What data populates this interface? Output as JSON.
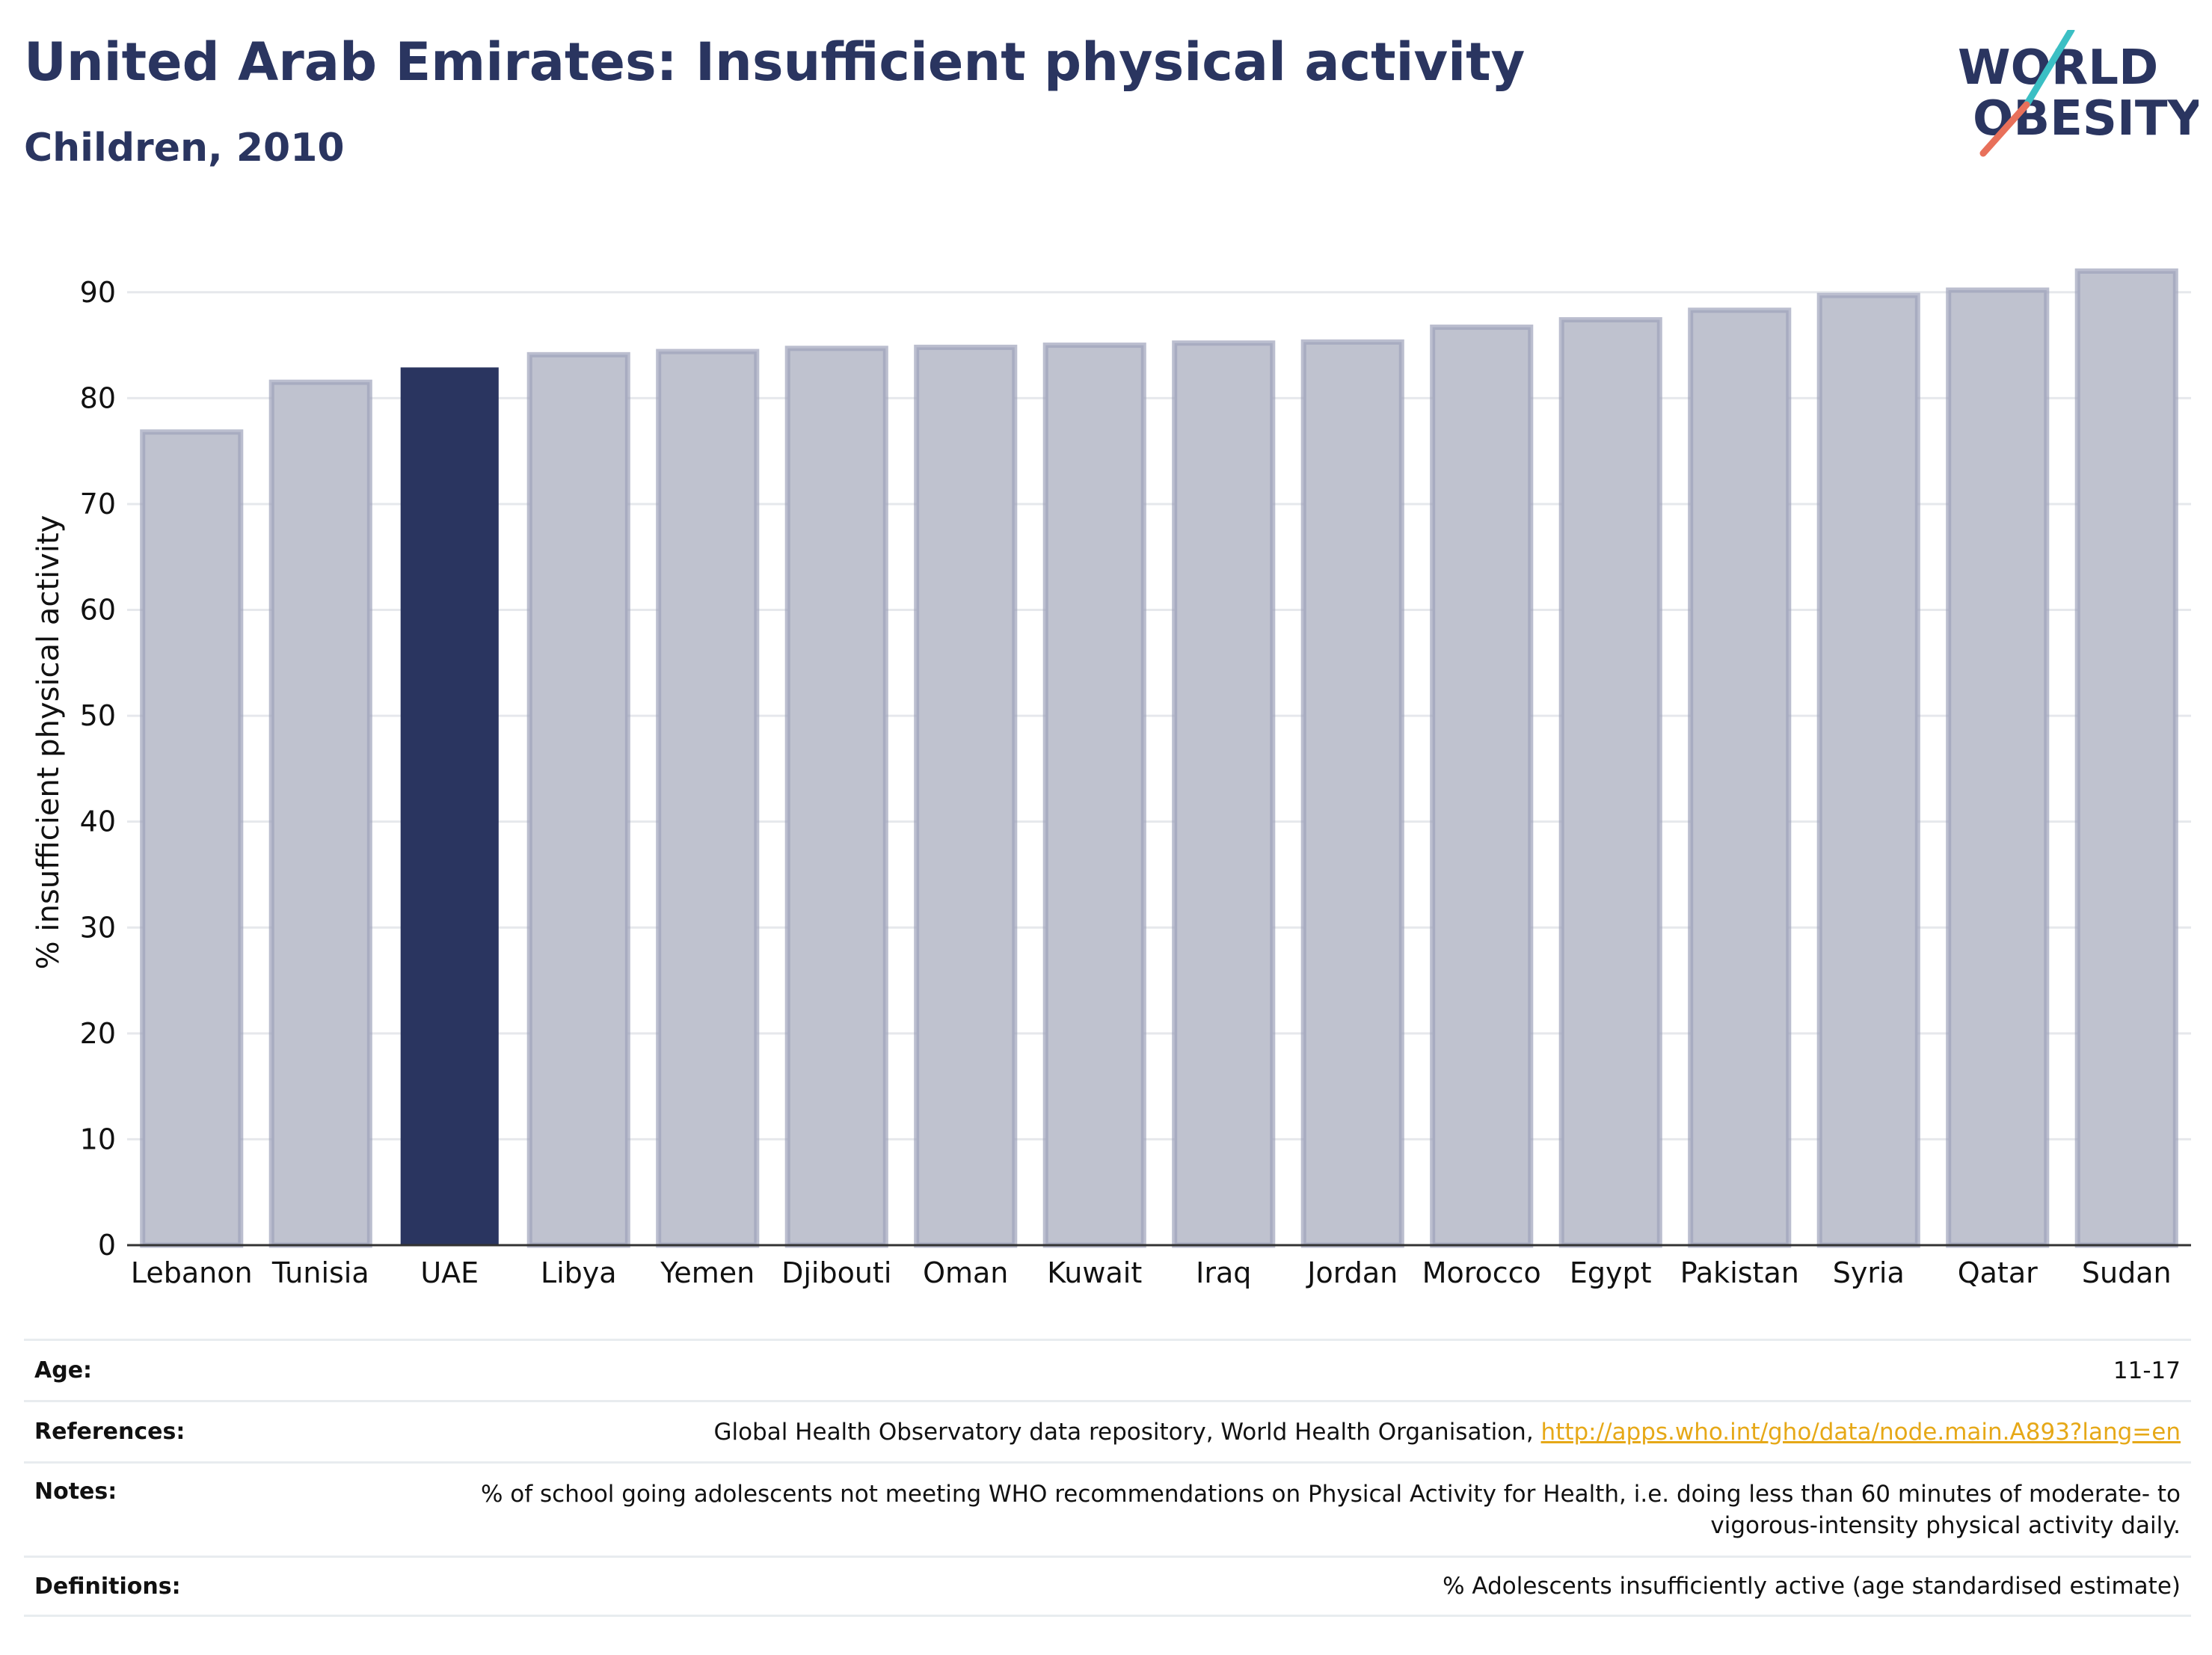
{
  "header": {
    "title": "United Arab Emirates: Insufficient physical activity",
    "subtitle": "Children, 2010"
  },
  "logo": {
    "line1": "WORLD",
    "line2": "OBESITY"
  },
  "colors": {
    "highlight": "#2a3560",
    "bar_fill": "#bfc2cf",
    "bar_stroke": "#9ea3bb",
    "text": "#2a3560",
    "link": "#e6a817",
    "logo_teal": "#3bbfc4",
    "logo_coral": "#e8705a"
  },
  "chart_data": {
    "type": "bar",
    "categories": [
      "Lebanon",
      "Tunisia",
      "UAE",
      "Libya",
      "Yemen",
      "Djibouti",
      "Oman",
      "Kuwait",
      "Iraq",
      "Jordan",
      "Morocco",
      "Egypt",
      "Pakistan",
      "Syria",
      "Qatar",
      "Sudan"
    ],
    "values": [
      76.8,
      81.5,
      82.9,
      84.1,
      84.4,
      84.7,
      84.8,
      85.0,
      85.2,
      85.3,
      86.7,
      87.4,
      88.3,
      89.7,
      90.2,
      92.0
    ],
    "highlight_category": "UAE",
    "ylabel": "% insufficient physical activity",
    "xlabel": "",
    "ylim": [
      0,
      95
    ],
    "yticks": [
      0,
      10,
      20,
      30,
      40,
      50,
      60,
      70,
      80,
      90
    ],
    "grid": true,
    "legend": "none"
  },
  "meta": [
    {
      "label": "Age:",
      "value": "11-17"
    },
    {
      "label": "References:",
      "value": "Global Health Observatory data repository, World Health Organisation, ",
      "link": "http://apps.who.int/gho/data/node.main.A893?lang=en"
    },
    {
      "label": "Notes:",
      "value": "% of school going adolescents not meeting WHO recommendations on Physical Activity for Health, i.e. doing less than 60 minutes of moderate- to vigorous-intensity physical activity daily."
    },
    {
      "label": "Definitions:",
      "value": "% Adolescents insufficiently active (age standardised estimate)"
    }
  ]
}
